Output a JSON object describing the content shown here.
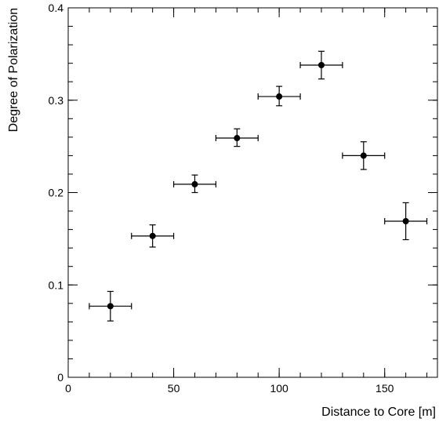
{
  "chart_data": {
    "type": "scatter",
    "title": "",
    "xlabel": "Distance to Core [m]",
    "ylabel": "Degree of Polarization",
    "xlim": [
      0,
      175
    ],
    "ylim": [
      0,
      0.4
    ],
    "x_ticks": [
      0,
      50,
      100,
      150
    ],
    "x_tick_labels": [
      "0",
      "50",
      "100",
      "150"
    ],
    "x_minor_step": 10,
    "y_ticks": [
      0,
      0.1,
      0.2,
      0.3,
      0.4
    ],
    "y_tick_labels": [
      "0",
      "0.1",
      "0.2",
      "0.3",
      "0.4"
    ],
    "y_minor_step": 0.02,
    "grid": false,
    "legend": "none",
    "series": [
      {
        "points": [
          {
            "x": 20,
            "y": 0.077,
            "xerr": 10,
            "y_low": 0.061,
            "y_high": 0.093
          },
          {
            "x": 40,
            "y": 0.153,
            "xerr": 10,
            "y_low": 0.141,
            "y_high": 0.165
          },
          {
            "x": 60,
            "y": 0.209,
            "xerr": 10,
            "y_low": 0.2,
            "y_high": 0.219
          },
          {
            "x": 80,
            "y": 0.259,
            "xerr": 10,
            "y_low": 0.25,
            "y_high": 0.269
          },
          {
            "x": 100,
            "y": 0.304,
            "xerr": 10,
            "y_low": 0.294,
            "y_high": 0.315
          },
          {
            "x": 120,
            "y": 0.338,
            "xerr": 10,
            "y_low": 0.323,
            "y_high": 0.353
          },
          {
            "x": 140,
            "y": 0.24,
            "xerr": 10,
            "y_low": 0.225,
            "y_high": 0.255
          },
          {
            "x": 160,
            "y": 0.169,
            "xerr": 10,
            "y_low": 0.149,
            "y_high": 0.189
          }
        ]
      }
    ],
    "colors": {
      "marker": "#000000",
      "axis": "#000000",
      "background": "#ffffff"
    }
  }
}
